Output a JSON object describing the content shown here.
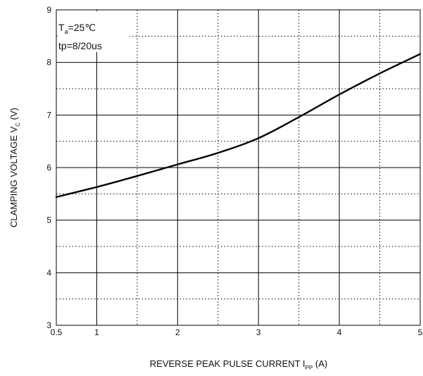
{
  "chart_data": {
    "type": "line",
    "xlabel": {
      "prefix": "REVERSE PEAK PULSE CURRENT",
      "symbol": "I",
      "subscript": "PP",
      "unit": "(A)"
    },
    "ylabel": {
      "prefix": "CLAMPING VOLTAGE",
      "symbol": "V",
      "subscript": "C",
      "unit": "(V)"
    },
    "xlim": [
      0.5,
      5
    ],
    "ylim": [
      3,
      9
    ],
    "x_ticks": [
      0.5,
      1,
      2,
      3,
      4,
      5
    ],
    "y_ticks": [
      3,
      4,
      5,
      6,
      7,
      8,
      9
    ],
    "grid": {
      "solid_x": [
        1,
        2,
        3,
        4
      ],
      "dotted_x": [
        1.5,
        2.5,
        3.5,
        4.5
      ],
      "solid_y": [
        4,
        5,
        6,
        7,
        8
      ],
      "dotted_y": [
        3.5,
        4.5,
        5.5,
        6.5,
        7.5,
        8.5
      ]
    },
    "annotations": [
      {
        "parts": [
          {
            "text": "T",
            "style": "normal"
          },
          {
            "text": "a",
            "style": "sub"
          },
          {
            "text": "=25℃",
            "style": "normal"
          }
        ]
      },
      {
        "parts": [
          {
            "text": "tp=8/20us",
            "style": "normal"
          }
        ]
      }
    ],
    "series": [
      {
        "x": [
          0.5,
          1.0,
          1.5,
          2.0,
          2.5,
          3.0,
          3.5,
          4.0,
          4.5,
          5.0
        ],
        "y": [
          5.44,
          5.63,
          5.84,
          6.06,
          6.28,
          6.56,
          6.96,
          7.39,
          7.79,
          8.16
        ]
      }
    ]
  },
  "colors": {
    "line": "#000000",
    "grid": "#000000",
    "text": "#111111"
  }
}
